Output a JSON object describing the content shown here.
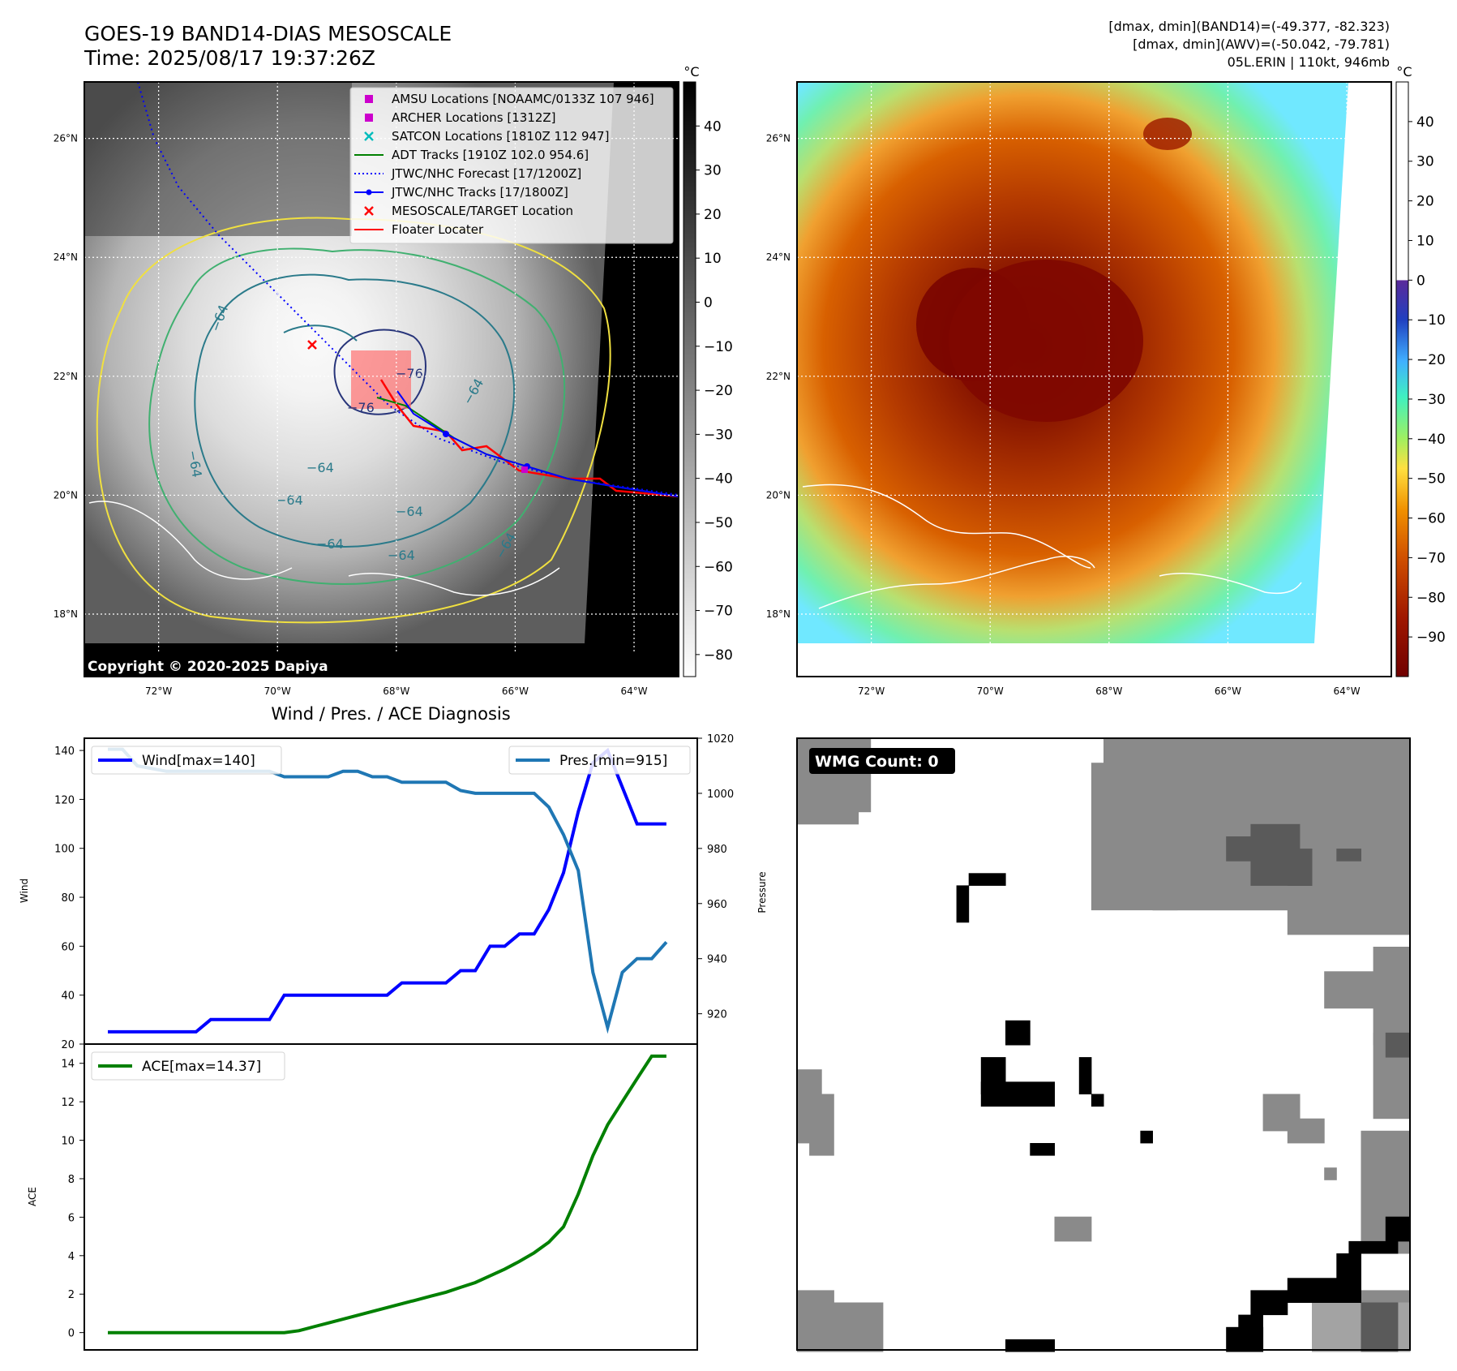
{
  "header": {
    "title_line1": "GOES-19 BAND14-DIAS MESOSCALE",
    "title_line2": "Time: 2025/08/17 19:37:26Z",
    "info_line1": "[dmax, dmin](BAND14)=(-49.377, -82.323)",
    "info_line2": "[dmax, dmin](AWV)=(-50.042, -79.781)",
    "info_line3": "05L.ERIN | 110kt, 946mb"
  },
  "map_axes": {
    "lon_ticks": [
      "72°W",
      "70°W",
      "68°W",
      "66°W",
      "64°W"
    ],
    "lat_ticks": [
      "26°N",
      "24°N",
      "22°N",
      "20°N",
      "18°N"
    ],
    "lon_values": [
      -72,
      -70,
      -68,
      -66,
      -64
    ],
    "lat_values": [
      26,
      24,
      22,
      20,
      18
    ],
    "lon_range": [
      -73.25,
      -63.25
    ],
    "lat_range": [
      16.95,
      26.95
    ],
    "grid": true
  },
  "ir_panel": {
    "colorbar_unit": "°C",
    "colorbar_ticks": [
      "40",
      "30",
      "20",
      "10",
      "0",
      "−10",
      "−20",
      "−30",
      "−40",
      "−50",
      "−60",
      "−70",
      "−80"
    ],
    "colorbar_values": [
      40,
      30,
      20,
      10,
      0,
      -10,
      -20,
      -30,
      -40,
      -50,
      -60,
      -70,
      -80
    ],
    "colorbar_range": [
      -85,
      50
    ],
    "copyright": "Copyright © 2020-2025 Dapiya",
    "contour_labels": [
      "−64",
      "−76",
      "−76",
      "−64",
      "−64",
      "−64",
      "−64",
      "−64",
      "−64",
      "−64",
      "−64"
    ],
    "legend": [
      {
        "label": "AMSU Locations [NOAAMC/0133Z 107 946]",
        "color": "#cc00cc",
        "marker": "square"
      },
      {
        "label": "ARCHER Locations [1312Z]",
        "color": "#cc00cc",
        "marker": "square"
      },
      {
        "label": "SATCON Locations [1810Z 112 947]",
        "color": "#00bcbc",
        "marker": "x"
      },
      {
        "label": "ADT Tracks [1910Z 102.0 954.6]",
        "color": "#008000",
        "marker": "line"
      },
      {
        "label": "JTWC/NHC Forecast [17/1200Z]",
        "color": "#0000ff",
        "marker": "dotted"
      },
      {
        "label": "JTWC/NHC Tracks [17/1800Z]",
        "color": "#0000ff",
        "marker": "line-dot"
      },
      {
        "label": "MESOSCALE/TARGET Location",
        "color": "#ff0000",
        "marker": "x"
      },
      {
        "label": "Floater Locater",
        "color": "#ff0000",
        "marker": "line"
      }
    ]
  },
  "awv_panel": {
    "colorbar_unit": "°C",
    "colorbar_ticks": [
      "40",
      "30",
      "20",
      "10",
      "0",
      "−10",
      "−20",
      "−30",
      "−40",
      "−50",
      "−60",
      "−70",
      "−80",
      "−90"
    ],
    "colorbar_values": [
      40,
      30,
      20,
      10,
      0,
      -10,
      -20,
      -30,
      -40,
      -50,
      -60,
      -70,
      -80,
      -90
    ],
    "colorbar_range": [
      -100,
      50
    ]
  },
  "wmg_panel": {
    "badge": "WMG Count: 0",
    "colors": {
      "black": "#000000",
      "dark": "#5a5a5a",
      "mid": "#8a8a8a",
      "light": "#a3a3a3"
    }
  },
  "chart_data": [
    {
      "type": "line",
      "title": "Wind / Pres. / ACE Diagnosis",
      "ylabel": "Wind",
      "y2label": "Pressure",
      "ylim": [
        20,
        145
      ],
      "y2lim": [
        909,
        1020
      ],
      "yticks": [
        20,
        40,
        60,
        80,
        100,
        120,
        140
      ],
      "y2ticks": [
        920,
        940,
        960,
        980,
        1000,
        1020
      ],
      "x": [
        0,
        1,
        2,
        3,
        4,
        5,
        6,
        7,
        8,
        9,
        10,
        11,
        12,
        13,
        14,
        15,
        16,
        17,
        18,
        19,
        20,
        21,
        22,
        23,
        24,
        25,
        26,
        27,
        28,
        29,
        30,
        31,
        32,
        33,
        34,
        35,
        36,
        37,
        38
      ],
      "series": [
        {
          "name": "Wind[max=140]",
          "color": "#0000ff",
          "axis": "left",
          "values": [
            25,
            25,
            25,
            25,
            25,
            25,
            25,
            30,
            30,
            30,
            30,
            30,
            40,
            40,
            40,
            40,
            40,
            40,
            40,
            40,
            45,
            45,
            45,
            45,
            50,
            50,
            60,
            60,
            65,
            65,
            75,
            90,
            115,
            135,
            140,
            125,
            110,
            110,
            110
          ]
        },
        {
          "name": "Pres.[min=915]",
          "color": "#1f77b4",
          "axis": "right",
          "values": [
            1016,
            1016,
            1010,
            1009,
            1008,
            1008,
            1008,
            1008,
            1008,
            1008,
            1008,
            1008,
            1006,
            1006,
            1006,
            1006,
            1008,
            1008,
            1006,
            1006,
            1004,
            1004,
            1004,
            1004,
            1001,
            1000,
            1000,
            1000,
            1000,
            1000,
            995,
            985,
            972,
            935,
            915,
            935,
            940,
            940,
            946
          ]
        }
      ]
    },
    {
      "type": "line",
      "ylabel": "ACE",
      "ylim": [
        -0.9,
        15
      ],
      "yticks": [
        0,
        2,
        4,
        6,
        8,
        10,
        12,
        14
      ],
      "x": [
        0,
        1,
        2,
        3,
        4,
        5,
        6,
        7,
        8,
        9,
        10,
        11,
        12,
        13,
        14,
        15,
        16,
        17,
        18,
        19,
        20,
        21,
        22,
        23,
        24,
        25,
        26,
        27,
        28,
        29,
        30,
        31,
        32,
        33,
        34,
        35,
        36,
        37,
        38
      ],
      "series": [
        {
          "name": "ACE[max=14.37]",
          "color": "#008000",
          "values": [
            0,
            0,
            0,
            0,
            0,
            0,
            0,
            0,
            0,
            0,
            0,
            0,
            0,
            0.1,
            0.3,
            0.5,
            0.7,
            0.9,
            1.1,
            1.3,
            1.5,
            1.7,
            1.9,
            2.1,
            2.35,
            2.6,
            2.95,
            3.3,
            3.7,
            4.15,
            4.7,
            5.5,
            7.2,
            9.2,
            10.8,
            12.0,
            13.2,
            14.37,
            14.37
          ]
        }
      ]
    }
  ]
}
